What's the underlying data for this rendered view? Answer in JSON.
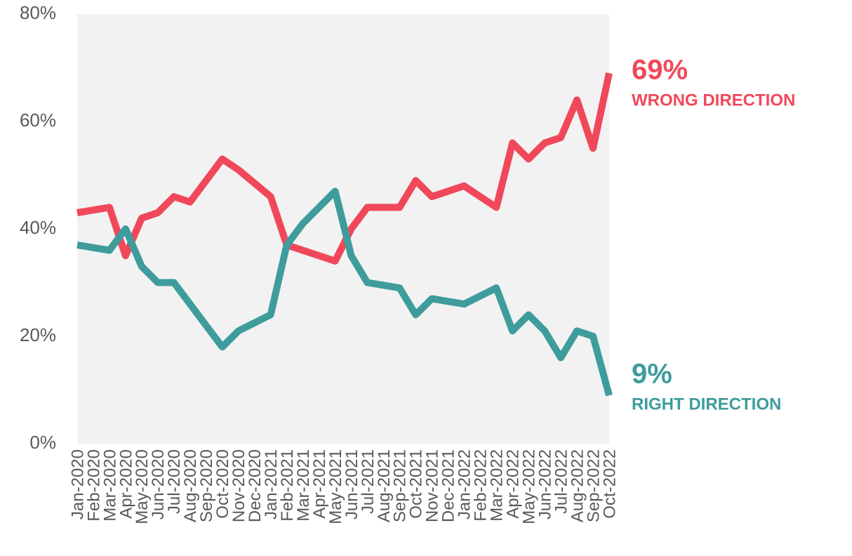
{
  "chart_data": {
    "type": "line",
    "categories": [
      "Jan-2020",
      "Feb-2020",
      "Mar-2020",
      "Apr-2020",
      "May-2020",
      "Jun-2020",
      "Jul-2020",
      "Aug-2020",
      "Sep-2020",
      "Oct-2020",
      "Nov-2020",
      "Dec-2020",
      "Jan-2021",
      "Feb-2021",
      "Mar-2021",
      "Apr-2021",
      "May-2021",
      "Jun-2021",
      "Jul-2021",
      "Aug-2021",
      "Sep-2021",
      "Oct-2021",
      "Nov-2021",
      "Dec-2021",
      "Jan-2022",
      "Feb-2022",
      "Mar-2022",
      "Apr-2022",
      "May-2022",
      "Jun-2022",
      "Jul-2022",
      "Aug-2022",
      "Sep-2022",
      "Oct-2022"
    ],
    "series": [
      {
        "name": "WRONG DIRECTION",
        "color": "#f0485a",
        "end_label": "69%",
        "values": [
          43,
          43.5,
          44,
          35,
          42,
          43,
          46,
          45,
          49,
          53,
          51,
          48.5,
          46,
          37,
          36,
          35,
          34,
          40,
          44,
          44,
          44,
          49,
          46,
          47,
          48,
          46,
          44,
          56,
          53,
          56,
          57,
          64,
          55,
          69
        ]
      },
      {
        "name": "RIGHT DIRECTION",
        "color": "#3f9c9c",
        "end_label": "9%",
        "values": [
          37,
          36.5,
          36,
          40,
          33,
          30,
          30,
          26,
          22,
          18,
          21,
          22.5,
          24,
          37,
          41,
          44,
          47,
          35,
          30,
          29.5,
          29,
          24,
          27,
          26.5,
          26,
          27.5,
          29,
          21,
          24,
          21,
          16,
          21,
          20,
          9
        ]
      }
    ],
    "ylim": [
      0,
      80
    ],
    "yticks": [
      {
        "value": 0,
        "label": "0%"
      },
      {
        "value": 20,
        "label": "20%"
      },
      {
        "value": 40,
        "label": "40%"
      },
      {
        "value": 60,
        "label": "60%"
      },
      {
        "value": 80,
        "label": "80%"
      }
    ],
    "background": "#f2f2f2"
  }
}
